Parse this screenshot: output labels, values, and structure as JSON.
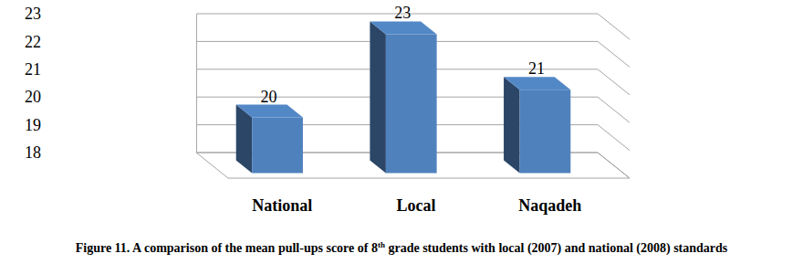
{
  "chart_data": {
    "type": "bar",
    "title": "Figure 11. A comparison of the mean pull-ups score of 8th grade students with local (2007) and national (2008) standards",
    "categories": [
      "National",
      "Local",
      "Naqadeh"
    ],
    "values": [
      20,
      23,
      21
    ],
    "color": "#4f81bd",
    "ylim": [
      18,
      23
    ],
    "yticks": [
      18,
      19,
      20,
      21,
      22,
      23
    ],
    "grid": true,
    "data_labels": true
  }
}
